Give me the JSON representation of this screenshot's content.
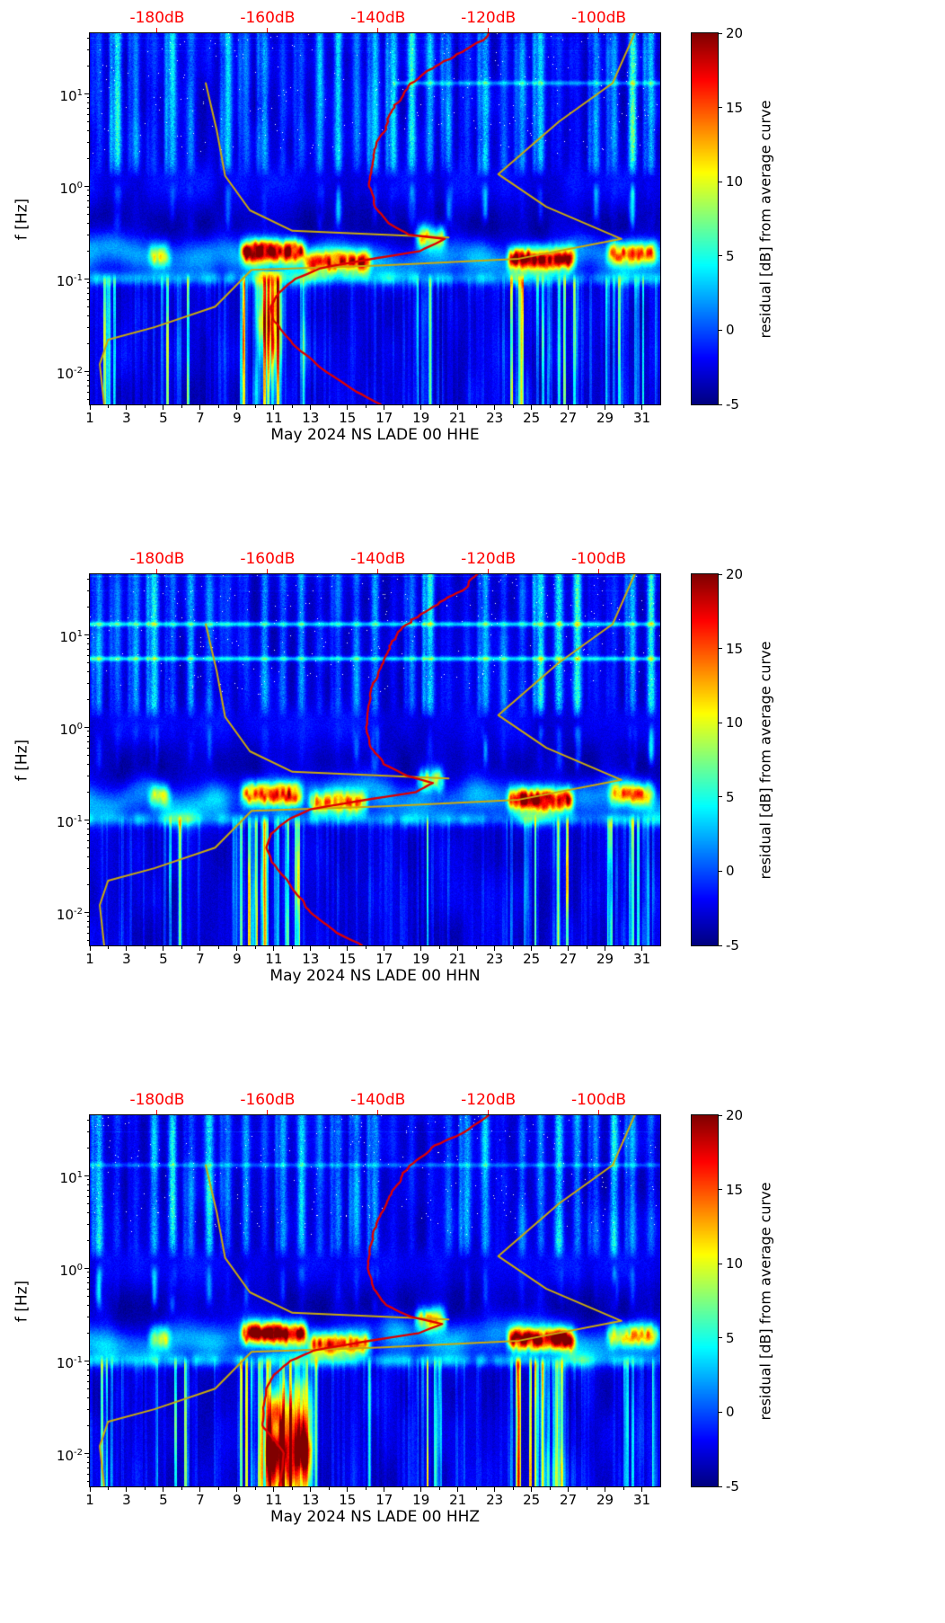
{
  "figure": {
    "background": "#ffffff",
    "panel_count": 3
  },
  "chart_data": [
    {
      "type": "heatmap",
      "channel": "HHE",
      "xlabel": "May 2024 NS LADE 00 HHE",
      "ylabel": "f [Hz]",
      "x_ticks": [
        1,
        3,
        5,
        7,
        9,
        11,
        13,
        15,
        17,
        19,
        21,
        23,
        25,
        27,
        29,
        31
      ],
      "xlim_days": [
        1,
        32
      ],
      "y_scale": "log",
      "ylim_hz": [
        0.0044,
        45
      ],
      "y_tick_exponents": [
        1,
        0,
        -1,
        -2
      ],
      "grid": false,
      "top_axis": {
        "color": "#ff0000",
        "tick_labels": [
          "-180dB",
          "-160dB",
          "-140dB",
          "-120dB",
          "-100dB"
        ],
        "tick_values_db": [
          -180,
          -160,
          -140,
          -120,
          -100
        ],
        "db_at_day1": -192.2,
        "db_per_day": 3.3333
      },
      "colorbar": {
        "label": "residual [dB] from average curve",
        "tick_values": [
          20,
          15,
          10,
          5,
          0,
          -5
        ],
        "lim": [
          -5,
          20
        ],
        "colormap": "jet"
      },
      "overlays": [
        {
          "name": "average-psd-curve",
          "color": "#dd0000",
          "jitter": true,
          "points_f_hz_db": [
            [
              45,
              -119.5
            ],
            [
              30,
              -123.9
            ],
            [
              20,
              -129.5
            ],
            [
              12,
              -134.5
            ],
            [
              8,
              -136.9
            ],
            [
              5,
              -138.2
            ],
            [
              3,
              -140.2
            ],
            [
              1.5,
              -141.2
            ],
            [
              1.0,
              -141.5
            ],
            [
              0.6,
              -140.5
            ],
            [
              0.4,
              -138.2
            ],
            [
              0.3,
              -134.5
            ],
            [
              0.27,
              -127.9
            ],
            [
              0.2,
              -132.2
            ],
            [
              0.16,
              -142.2
            ],
            [
              0.13,
              -150.5
            ],
            [
              0.1,
              -154.9
            ],
            [
              0.07,
              -158.2
            ],
            [
              0.05,
              -159.5
            ],
            [
              0.035,
              -158.9
            ],
            [
              0.02,
              -155.5
            ],
            [
              0.01,
              -149.5
            ],
            [
              0.006,
              -143.9
            ],
            [
              0.0044,
              -139.5
            ]
          ]
        },
        {
          "name": "noise-model-high-curve",
          "color": "#c9a90e",
          "jitter": false,
          "points_f_hz_db": [
            [
              45,
              -93.5
            ],
            [
              13,
              -97.5
            ],
            [
              5,
              -107.2
            ],
            [
              1.35,
              -118.2
            ],
            [
              0.6,
              -109.5
            ],
            [
              0.27,
              -95.9
            ],
            [
              0.165,
              -114.5
            ],
            [
              0.14,
              -138.9
            ],
            [
              0.125,
              -162.9
            ],
            [
              0.05,
              -169.5
            ],
            [
              0.03,
              -180.5
            ],
            [
              0.022,
              -188.9
            ],
            [
              0.012,
              -190.4
            ],
            [
              0.0044,
              -189.6
            ]
          ]
        },
        {
          "name": "noise-model-low-curve",
          "color": "#c9a90e",
          "jitter": false,
          "points_f_hz_db": [
            [
              13,
              -171.2
            ],
            [
              4,
              -169.2
            ],
            [
              1.3,
              -167.7
            ],
            [
              0.55,
              -163.2
            ],
            [
              0.33,
              -155.5
            ],
            [
              0.28,
              -127.2
            ]
          ]
        }
      ],
      "heatmap": {
        "seed": 11,
        "microseism_events": [
          [
            4.3,
            5.3,
            0.18,
            9
          ],
          [
            9.3,
            12.7,
            0.2,
            20
          ],
          [
            12.8,
            16.2,
            0.15,
            15
          ],
          [
            18.8,
            20.3,
            0.28,
            13
          ],
          [
            23.8,
            27.3,
            0.165,
            19
          ],
          [
            29.2,
            31.8,
            0.19,
            13
          ]
        ],
        "lowfreq_events": [
          [
            1.7,
            2.5,
            9
          ],
          [
            4.8,
            6.3,
            8
          ],
          [
            9.0,
            12.5,
            13
          ],
          [
            19.0,
            20.0,
            12
          ],
          [
            23.8,
            27.5,
            11
          ],
          [
            29.0,
            31.5,
            8
          ]
        ],
        "lowfreq_lines": [
          [
            2.05,
            8
          ],
          [
            10.7,
            10
          ],
          [
            19.5,
            11
          ],
          [
            26.5,
            8
          ]
        ],
        "lowfreq_blobs": [
          [
            10.2,
            11.4,
            0.035,
            15
          ]
        ],
        "hline_artifacts": [
          [
            13,
            17.5,
            32,
            4
          ]
        ]
      }
    },
    {
      "type": "heatmap",
      "channel": "HHN",
      "xlabel": "May 2024 NS LADE 00 HHN",
      "ylabel": "f [Hz]",
      "x_ticks": [
        1,
        3,
        5,
        7,
        9,
        11,
        13,
        15,
        17,
        19,
        21,
        23,
        25,
        27,
        29,
        31
      ],
      "xlim_days": [
        1,
        32
      ],
      "y_scale": "log",
      "ylim_hz": [
        0.0044,
        45
      ],
      "y_tick_exponents": [
        1,
        0,
        -1,
        -2
      ],
      "grid": false,
      "top_axis": {
        "color": "#ff0000",
        "tick_labels": [
          "-180dB",
          "-160dB",
          "-140dB",
          "-120dB",
          "-100dB"
        ],
        "tick_values_db": [
          -180,
          -160,
          -140,
          -120,
          -100
        ],
        "db_at_day1": -192.2,
        "db_per_day": 3.3333
      },
      "colorbar": {
        "label": "residual [dB] from average curve",
        "tick_values": [
          20,
          15,
          10,
          5,
          0,
          -5
        ],
        "lim": [
          -5,
          20
        ],
        "colormap": "jet"
      },
      "overlays": [
        {
          "name": "average-psd-curve",
          "color": "#dd0000",
          "jitter": true,
          "points_f_hz_db": [
            [
              45,
              -121.9
            ],
            [
              30,
              -124.9
            ],
            [
              20,
              -130.2
            ],
            [
              12,
              -135.5
            ],
            [
              8,
              -137.5
            ],
            [
              5,
              -138.9
            ],
            [
              3,
              -140.9
            ],
            [
              1.5,
              -141.9
            ],
            [
              1.0,
              -142.2
            ],
            [
              0.6,
              -141.2
            ],
            [
              0.4,
              -138.9
            ],
            [
              0.3,
              -134.9
            ],
            [
              0.25,
              -129.9
            ],
            [
              0.2,
              -133.2
            ],
            [
              0.16,
              -143.5
            ],
            [
              0.13,
              -152.2
            ],
            [
              0.1,
              -156.5
            ],
            [
              0.07,
              -159.5
            ],
            [
              0.05,
              -160.2
            ],
            [
              0.035,
              -159.2
            ],
            [
              0.02,
              -155.9
            ],
            [
              0.01,
              -152.2
            ],
            [
              0.006,
              -147.5
            ],
            [
              0.0044,
              -142.9
            ]
          ]
        },
        {
          "name": "noise-model-high-curve",
          "color": "#c9a90e",
          "jitter": false,
          "points_f_hz_db": [
            [
              45,
              -93.5
            ],
            [
              13,
              -97.5
            ],
            [
              5,
              -107.2
            ],
            [
              1.35,
              -118.2
            ],
            [
              0.6,
              -109.5
            ],
            [
              0.27,
              -95.9
            ],
            [
              0.165,
              -114.5
            ],
            [
              0.14,
              -138.9
            ],
            [
              0.125,
              -162.9
            ],
            [
              0.05,
              -169.5
            ],
            [
              0.03,
              -180.5
            ],
            [
              0.022,
              -188.9
            ],
            [
              0.012,
              -190.4
            ],
            [
              0.0044,
              -189.6
            ]
          ]
        },
        {
          "name": "noise-model-low-curve",
          "color": "#c9a90e",
          "jitter": false,
          "points_f_hz_db": [
            [
              13,
              -171.2
            ],
            [
              4,
              -169.2
            ],
            [
              1.3,
              -167.7
            ],
            [
              0.55,
              -163.2
            ],
            [
              0.33,
              -155.5
            ],
            [
              0.28,
              -127.2
            ]
          ]
        }
      ],
      "heatmap": {
        "seed": 22,
        "microseism_events": [
          [
            4.3,
            5.3,
            0.18,
            8
          ],
          [
            9.3,
            12.5,
            0.19,
            16
          ],
          [
            13.0,
            16.0,
            0.15,
            13
          ],
          [
            18.9,
            20.2,
            0.27,
            11
          ],
          [
            23.8,
            27.2,
            0.165,
            18
          ],
          [
            29.3,
            31.6,
            0.19,
            12
          ]
        ],
        "lowfreq_events": [
          [
            1.7,
            2.5,
            8
          ],
          [
            4.8,
            6.3,
            8
          ],
          [
            9.0,
            12.5,
            11
          ],
          [
            19.0,
            20.0,
            10
          ],
          [
            23.8,
            27.5,
            11
          ],
          [
            29.0,
            31.5,
            8
          ]
        ],
        "lowfreq_lines": [
          [
            5.9,
            12
          ],
          [
            10.5,
            10
          ],
          [
            26.45,
            11
          ]
        ],
        "lowfreq_blobs": [],
        "hline_artifacts": [
          [
            13,
            1,
            32,
            6
          ],
          [
            5.5,
            1,
            32,
            6
          ]
        ]
      }
    },
    {
      "type": "heatmap",
      "channel": "HHZ",
      "xlabel": "May 2024 NS LADE 00 HHZ",
      "ylabel": "f [Hz]",
      "x_ticks": [
        1,
        3,
        5,
        7,
        9,
        11,
        13,
        15,
        17,
        19,
        21,
        23,
        25,
        27,
        29,
        31
      ],
      "xlim_days": [
        1,
        32
      ],
      "y_scale": "log",
      "ylim_hz": [
        0.0044,
        45
      ],
      "y_tick_exponents": [
        1,
        0,
        -1,
        -2
      ],
      "grid": false,
      "top_axis": {
        "color": "#ff0000",
        "tick_labels": [
          "-180dB",
          "-160dB",
          "-140dB",
          "-120dB",
          "-100dB"
        ],
        "tick_values_db": [
          -180,
          -160,
          -140,
          -120,
          -100
        ],
        "db_at_day1": -192.2,
        "db_per_day": 3.3333
      },
      "colorbar": {
        "label": "residual [dB] from average curve",
        "tick_values": [
          20,
          15,
          10,
          5,
          0,
          -5
        ],
        "lim": [
          -5,
          20
        ],
        "colormap": "jet"
      },
      "overlays": [
        {
          "name": "average-psd-curve",
          "color": "#dd0000",
          "jitter": true,
          "points_f_hz_db": [
            [
              45,
              -120.5
            ],
            [
              30,
              -124.2
            ],
            [
              20,
              -129.9
            ],
            [
              12,
              -134.9
            ],
            [
              8,
              -136.9
            ],
            [
              5,
              -138.5
            ],
            [
              3,
              -140.5
            ],
            [
              1.5,
              -141.5
            ],
            [
              1.0,
              -141.9
            ],
            [
              0.6,
              -140.9
            ],
            [
              0.4,
              -138.5
            ],
            [
              0.3,
              -134.2
            ],
            [
              0.25,
              -128.5
            ],
            [
              0.2,
              -132.5
            ],
            [
              0.16,
              -142.9
            ],
            [
              0.13,
              -151.5
            ],
            [
              0.1,
              -155.9
            ],
            [
              0.07,
              -158.9
            ],
            [
              0.05,
              -160.2
            ],
            [
              0.035,
              -160.5
            ],
            [
              0.02,
              -160.9
            ],
            [
              0.01,
              -156.9
            ],
            [
              0.006,
              -157.5
            ],
            [
              0.0044,
              -157.9
            ]
          ]
        },
        {
          "name": "noise-model-high-curve",
          "color": "#c9a90e",
          "jitter": false,
          "points_f_hz_db": [
            [
              45,
              -93.5
            ],
            [
              13,
              -97.5
            ],
            [
              5,
              -107.2
            ],
            [
              1.35,
              -118.2
            ],
            [
              0.6,
              -109.5
            ],
            [
              0.27,
              -95.9
            ],
            [
              0.165,
              -114.5
            ],
            [
              0.14,
              -138.9
            ],
            [
              0.125,
              -162.9
            ],
            [
              0.05,
              -169.5
            ],
            [
              0.03,
              -180.5
            ],
            [
              0.022,
              -188.9
            ],
            [
              0.012,
              -190.4
            ],
            [
              0.0044,
              -189.6
            ]
          ]
        },
        {
          "name": "noise-model-low-curve",
          "color": "#c9a90e",
          "jitter": false,
          "points_f_hz_db": [
            [
              13,
              -171.2
            ],
            [
              4,
              -169.2
            ],
            [
              1.3,
              -167.7
            ],
            [
              0.55,
              -163.2
            ],
            [
              0.33,
              -155.5
            ],
            [
              0.28,
              -127.2
            ]
          ]
        }
      ],
      "heatmap": {
        "seed": 33,
        "microseism_events": [
          [
            4.3,
            5.3,
            0.18,
            9
          ],
          [
            9.3,
            12.7,
            0.2,
            20
          ],
          [
            13.0,
            16.2,
            0.15,
            14
          ],
          [
            18.8,
            20.3,
            0.28,
            14
          ],
          [
            23.8,
            27.3,
            0.17,
            19
          ],
          [
            29.2,
            31.8,
            0.19,
            12
          ]
        ],
        "lowfreq_events": [
          [
            1.7,
            2.5,
            9
          ],
          [
            4.8,
            6.3,
            8
          ],
          [
            9.0,
            13.0,
            13
          ],
          [
            19.0,
            20.0,
            10
          ],
          [
            23.8,
            27.5,
            12
          ],
          [
            29.0,
            31.5,
            8
          ]
        ],
        "lowfreq_lines": [
          [
            13.3,
            10
          ],
          [
            16.2,
            9
          ],
          [
            24.3,
            10
          ],
          [
            25.6,
            10
          ],
          [
            26.5,
            10
          ]
        ],
        "lowfreq_blobs": [
          [
            10.5,
            13.0,
            0.012,
            24
          ]
        ],
        "hline_artifacts": [
          [
            13,
            1,
            32,
            3
          ]
        ]
      }
    }
  ]
}
